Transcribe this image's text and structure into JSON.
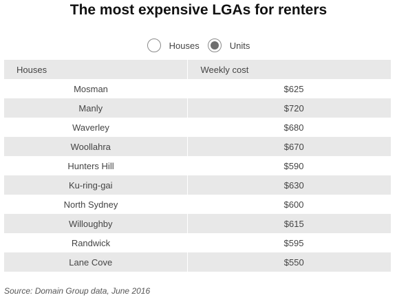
{
  "title": "The most expensive LGAs for renters",
  "toggle": {
    "options": [
      {
        "label": "Houses",
        "selected": false
      },
      {
        "label": "Units",
        "selected": true
      }
    ]
  },
  "table": {
    "headers": [
      "Houses",
      "Weekly cost"
    ],
    "rows": [
      {
        "name": "Mosman",
        "cost": "$625"
      },
      {
        "name": "Manly",
        "cost": "$720"
      },
      {
        "name": "Waverley",
        "cost": "$680"
      },
      {
        "name": "Woollahra",
        "cost": "$670"
      },
      {
        "name": "Hunters Hill",
        "cost": "$590"
      },
      {
        "name": "Ku-ring-gai",
        "cost": "$630"
      },
      {
        "name": "North Sydney",
        "cost": "$600"
      },
      {
        "name": "Willoughby",
        "cost": "$615"
      },
      {
        "name": "Randwick",
        "cost": "$595"
      },
      {
        "name": "Lane Cove",
        "cost": "$550"
      }
    ]
  },
  "source": "Source: Domain Group data, June 2016"
}
